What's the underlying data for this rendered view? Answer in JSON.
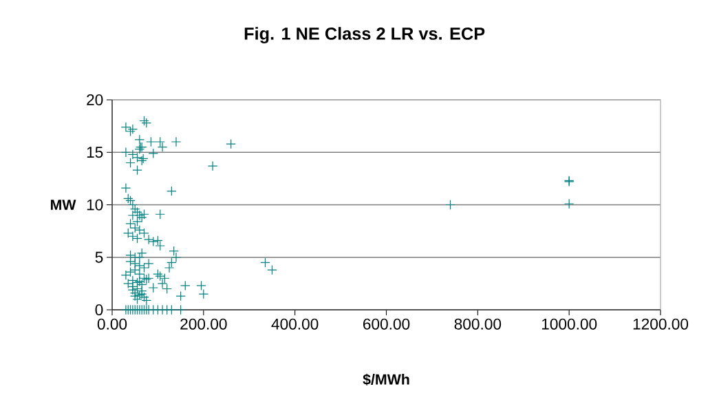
{
  "chart_data": {
    "type": "scatter",
    "title": "Fig. 1 NE Class 2 LR vs. ECP",
    "xlabel": "$/MWh",
    "ylabel": "MW",
    "marker": "cross",
    "grid": "y",
    "xlim": [
      0,
      1200
    ],
    "ylim": [
      0,
      20
    ],
    "xticks": [
      {
        "value": 0,
        "label": "0.00"
      },
      {
        "value": 200,
        "label": "200.00"
      },
      {
        "value": 400,
        "label": "400.00"
      },
      {
        "value": 600,
        "label": "600.00"
      },
      {
        "value": 800,
        "label": "800.00"
      },
      {
        "value": 1000,
        "label": "1000.00"
      },
      {
        "value": 1200,
        "label": "1200.00"
      }
    ],
    "yticks": [
      0,
      5,
      10,
      15,
      20
    ],
    "series": [
      {
        "color": "#008080",
        "x": [
          30,
          40,
          45,
          70,
          75,
          60,
          85,
          105,
          110,
          140,
          260,
          30,
          45,
          55,
          60,
          62,
          65,
          68,
          90,
          55,
          40,
          65,
          220,
          130,
          30,
          35,
          40,
          45,
          50,
          55,
          60,
          65,
          45,
          55,
          40,
          50,
          60,
          70,
          80,
          90,
          100,
          105,
          70,
          105,
          35,
          45,
          55,
          65,
          40,
          50,
          60,
          40,
          50,
          60,
          70,
          30,
          40,
          50,
          60,
          70,
          80,
          45,
          55,
          65,
          75,
          35,
          45,
          55,
          65,
          50,
          60,
          70,
          80,
          90,
          100,
          105,
          110,
          115,
          120,
          125,
          130,
          135,
          140,
          150,
          160,
          195,
          200,
          335,
          350,
          740,
          1000,
          1000,
          1000,
          75,
          65,
          55,
          50,
          45,
          60,
          30,
          35,
          40,
          45,
          50,
          55,
          60,
          65,
          70,
          75,
          80,
          90,
          100,
          110,
          120,
          130,
          150
        ],
        "values": [
          17.4,
          17.0,
          17.2,
          18.0,
          17.8,
          16.2,
          16.0,
          16.0,
          15.5,
          16.0,
          15.8,
          15.0,
          14.8,
          14.5,
          15.3,
          15.5,
          15.5,
          14.4,
          14.9,
          13.3,
          14.0,
          14.2,
          13.7,
          11.3,
          11.6,
          10.6,
          10.4,
          10.0,
          9.6,
          9.3,
          9.0,
          8.8,
          9.0,
          8.4,
          8.2,
          7.8,
          7.6,
          7.3,
          6.7,
          6.5,
          6.6,
          6.1,
          9.1,
          9.1,
          7.3,
          7.0,
          6.8,
          5.4,
          5.2,
          5.0,
          5.0,
          4.6,
          4.4,
          4.2,
          4.0,
          3.3,
          3.6,
          3.8,
          3.4,
          3.0,
          4.4,
          2.8,
          2.6,
          2.4,
          2.9,
          2.5,
          2.2,
          2.0,
          1.8,
          1.6,
          1.4,
          1.2,
          3.0,
          2.1,
          3.4,
          3.2,
          2.5,
          3.0,
          2.0,
          4.0,
          4.5,
          5.6,
          5.0,
          1.3,
          2.3,
          2.3,
          1.5,
          4.5,
          3.8,
          10.0,
          12.3,
          12.2,
          10.1,
          0.9,
          1.5,
          1.0,
          1.3,
          1.9,
          2.7,
          0,
          0,
          0,
          0,
          0,
          0,
          0,
          0,
          0,
          0,
          0,
          0,
          0,
          0,
          0,
          0,
          0
        ]
      }
    ]
  }
}
